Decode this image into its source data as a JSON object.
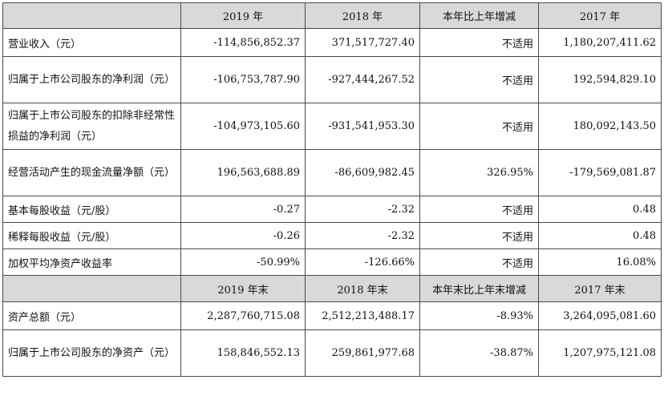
{
  "header1": [
    "2019 年",
    "2018 年",
    "本年比上年增减",
    "2017 年"
  ],
  "rows1": [
    {
      "label": "营业收入（元）",
      "values": [
        "-114,856,852.37",
        "371,517,727.40",
        "不适用",
        "1,180,207,411.62"
      ]
    },
    {
      "label": "归属于上市公司股东的净利润（元）",
      "values": [
        "-106,753,787.90",
        "-927,444,267.52",
        "不适用",
        "192,594,829.10"
      ]
    },
    {
      "label": "归属于上市公司股东的扣除非经常性损益的净利润（元）",
      "values": [
        "-104,973,105.60",
        "-931,541,953.30",
        "不适用",
        "180,092,143.50"
      ]
    },
    {
      "label": "经营活动产生的现金流量净额（元）",
      "values": [
        "196,563,688.89",
        "-86,609,982.45",
        "326.95%",
        "-179,569,081.87"
      ]
    },
    {
      "label": "基本每股收益（元/股）",
      "values": [
        "-0.27",
        "-2.32",
        "不适用",
        "0.48"
      ]
    },
    {
      "label": "稀释每股收益（元/股）",
      "values": [
        "-0.26",
        "-2.32",
        "不适用",
        "0.48"
      ]
    },
    {
      "label": "加权平均净资产收益率",
      "values": [
        "-50.99%",
        "-126.66%",
        "不适用",
        "16.08%"
      ]
    }
  ],
  "header2": [
    "2019 年末",
    "2018 年末",
    "本年末比上年末增减",
    "2017 年末"
  ],
  "rows2": [
    {
      "label": "资产总额（元）",
      "values": [
        "2,287,760,715.08",
        "2,512,213,488.17",
        "-8.93%",
        "3,264,095,081.60"
      ]
    },
    {
      "label": "归属于上市公司股东的净资产（元）",
      "values": [
        "158,846,552.13",
        "259,861,977.68",
        "-38.87%",
        "1,207,975,121.08"
      ]
    }
  ]
}
